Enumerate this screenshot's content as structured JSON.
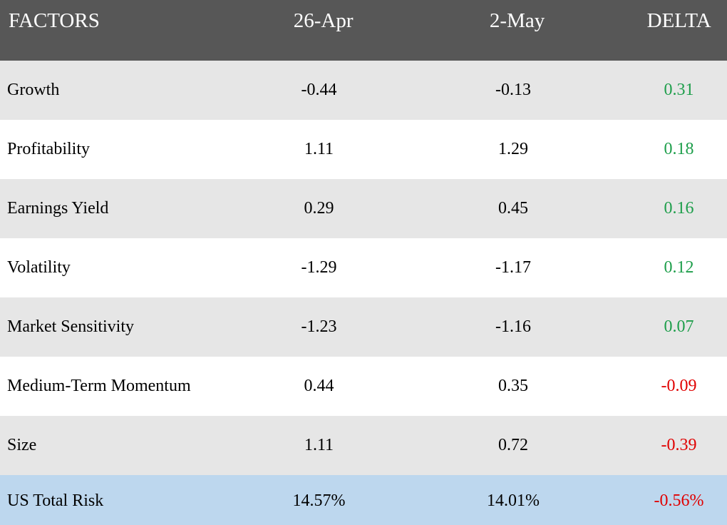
{
  "header": {
    "factors": "FACTORS",
    "col1": "26-Apr",
    "col2": "2-May",
    "delta": "DELTA"
  },
  "rows": [
    {
      "name": "Growth",
      "a": "-0.44",
      "b": "-0.13",
      "delta": "0.31",
      "sign": "pos"
    },
    {
      "name": "Profitability",
      "a": "1.11",
      "b": "1.29",
      "delta": "0.18",
      "sign": "pos"
    },
    {
      "name": "Earnings Yield",
      "a": "0.29",
      "b": "0.45",
      "delta": "0.16",
      "sign": "pos"
    },
    {
      "name": "Volatility",
      "a": "-1.29",
      "b": "-1.17",
      "delta": "0.12",
      "sign": "pos"
    },
    {
      "name": "Market Sensitivity",
      "a": "-1.23",
      "b": "-1.16",
      "delta": "0.07",
      "sign": "pos"
    },
    {
      "name": "Medium-Term Momentum",
      "a": "0.44",
      "b": "0.35",
      "delta": "-0.09",
      "sign": "neg"
    },
    {
      "name": "Size",
      "a": "1.11",
      "b": "0.72",
      "delta": "-0.39",
      "sign": "neg"
    }
  ],
  "total": {
    "name": "US Total Risk",
    "a": "14.57%",
    "b": "14.01%",
    "delta": "-0.56%",
    "sign": "neg"
  },
  "colors": {
    "header_bg": "#575757",
    "alt_row_bg": "#e6e6e6",
    "total_row_bg": "#bdd7ee",
    "positive": "#1e9e4b",
    "negative": "#e00000"
  }
}
